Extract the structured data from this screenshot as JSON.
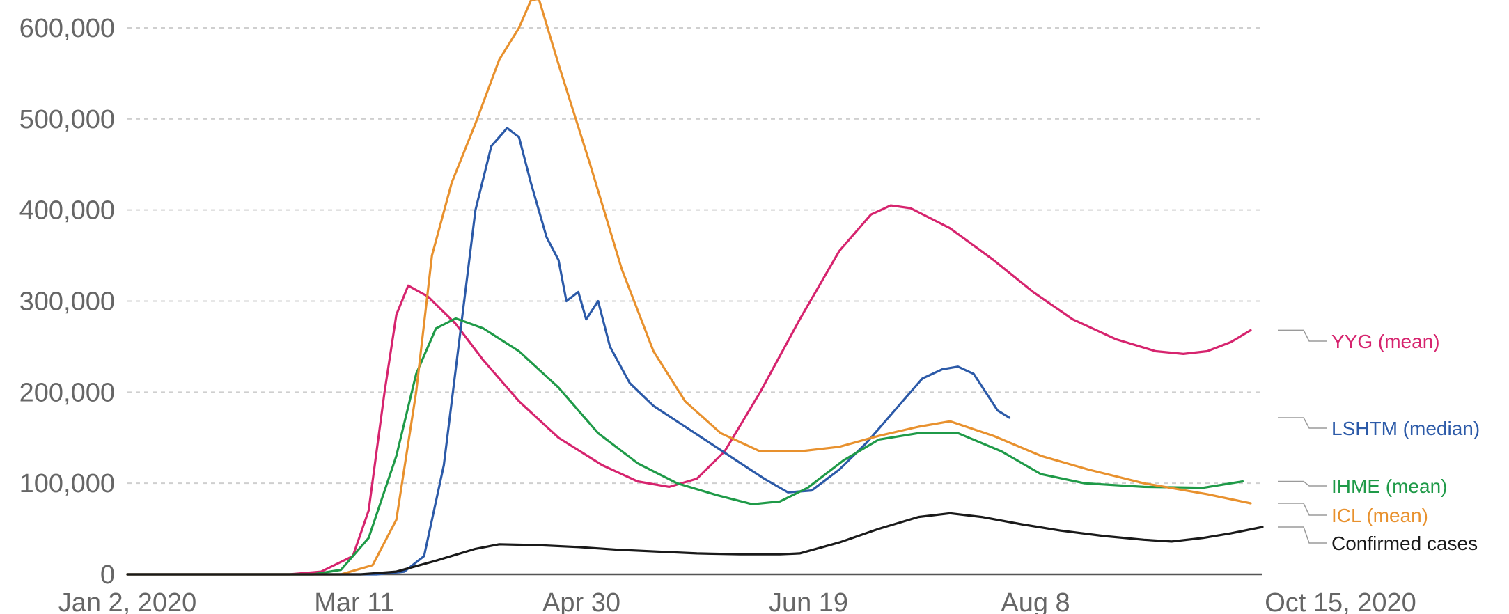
{
  "chart_data": {
    "type": "line",
    "title": "",
    "xlabel": "",
    "ylabel": "",
    "x_ticks": [
      "Jan 2, 2020",
      "Mar 11",
      "Apr 30",
      "Jun 19",
      "Aug 8",
      "Oct 15, 2020"
    ],
    "xlim": [
      "2020-01-02",
      "2020-10-15"
    ],
    "ylim": [
      0,
      600000
    ],
    "y_ticks": [
      {
        "value": 0,
        "label": "0"
      },
      {
        "value": 100000,
        "label": "100,000"
      },
      {
        "value": 200000,
        "label": "200,000"
      },
      {
        "value": 300000,
        "label": "300,000"
      },
      {
        "value": 400000,
        "label": "400,000"
      },
      {
        "value": 500000,
        "label": "500,000"
      },
      {
        "value": 600000,
        "label": "600,000"
      }
    ],
    "grid": "horizontal dashed",
    "legend_placement": "right",
    "series": [
      {
        "name": "YYG (mean)",
        "color": "#d6246e",
        "points": [
          [
            "2020-01-02",
            0
          ],
          [
            "2020-02-12",
            0
          ],
          [
            "2020-02-20",
            3000
          ],
          [
            "2020-02-28",
            20000
          ],
          [
            "2020-03-03",
            70000
          ],
          [
            "2020-03-07",
            200000
          ],
          [
            "2020-03-10",
            285000
          ],
          [
            "2020-03-13",
            317000
          ],
          [
            "2020-03-18",
            305000
          ],
          [
            "2020-03-25",
            275000
          ],
          [
            "2020-04-01",
            235000
          ],
          [
            "2020-04-10",
            190000
          ],
          [
            "2020-04-20",
            150000
          ],
          [
            "2020-05-01",
            120000
          ],
          [
            "2020-05-10",
            102000
          ],
          [
            "2020-05-18",
            96000
          ],
          [
            "2020-05-25",
            105000
          ],
          [
            "2020-06-01",
            135000
          ],
          [
            "2020-06-10",
            200000
          ],
          [
            "2020-06-20",
            280000
          ],
          [
            "2020-06-30",
            355000
          ],
          [
            "2020-07-08",
            395000
          ],
          [
            "2020-07-13",
            405000
          ],
          [
            "2020-07-18",
            402000
          ],
          [
            "2020-07-28",
            380000
          ],
          [
            "2020-08-08",
            345000
          ],
          [
            "2020-08-18",
            310000
          ],
          [
            "2020-08-28",
            280000
          ],
          [
            "2020-09-08",
            258000
          ],
          [
            "2020-09-18",
            245000
          ],
          [
            "2020-09-25",
            242000
          ],
          [
            "2020-10-01",
            245000
          ],
          [
            "2020-10-07",
            255000
          ],
          [
            "2020-10-12",
            268000
          ]
        ]
      },
      {
        "name": "LSHTM (median)",
        "color": "#2c5aa8",
        "points": [
          [
            "2020-01-02",
            0
          ],
          [
            "2020-03-05",
            0
          ],
          [
            "2020-03-12",
            3000
          ],
          [
            "2020-03-17",
            20000
          ],
          [
            "2020-03-22",
            120000
          ],
          [
            "2020-03-26",
            260000
          ],
          [
            "2020-03-30",
            400000
          ],
          [
            "2020-04-03",
            470000
          ],
          [
            "2020-04-07",
            490000
          ],
          [
            "2020-04-10",
            480000
          ],
          [
            "2020-04-13",
            430000
          ],
          [
            "2020-04-17",
            370000
          ],
          [
            "2020-04-20",
            345000
          ],
          [
            "2020-04-22",
            300000
          ],
          [
            "2020-04-25",
            310000
          ],
          [
            "2020-04-27",
            280000
          ],
          [
            "2020-04-30",
            300000
          ],
          [
            "2020-05-03",
            250000
          ],
          [
            "2020-05-08",
            210000
          ],
          [
            "2020-05-14",
            185000
          ],
          [
            "2020-05-21",
            165000
          ],
          [
            "2020-05-28",
            145000
          ],
          [
            "2020-06-04",
            125000
          ],
          [
            "2020-06-11",
            105000
          ],
          [
            "2020-06-17",
            90000
          ],
          [
            "2020-06-23",
            92000
          ],
          [
            "2020-06-30",
            115000
          ],
          [
            "2020-07-07",
            145000
          ],
          [
            "2020-07-14",
            180000
          ],
          [
            "2020-07-21",
            215000
          ],
          [
            "2020-07-26",
            225000
          ],
          [
            "2020-07-30",
            228000
          ],
          [
            "2020-08-03",
            220000
          ],
          [
            "2020-08-06",
            200000
          ],
          [
            "2020-08-09",
            180000
          ],
          [
            "2020-08-12",
            172000
          ]
        ]
      },
      {
        "name": "IHME (mean)",
        "color": "#1f9a48",
        "points": [
          [
            "2020-01-02",
            0
          ],
          [
            "2020-02-18",
            0
          ],
          [
            "2020-02-25",
            5000
          ],
          [
            "2020-03-03",
            40000
          ],
          [
            "2020-03-10",
            130000
          ],
          [
            "2020-03-15",
            220000
          ],
          [
            "2020-03-20",
            270000
          ],
          [
            "2020-03-25",
            281000
          ],
          [
            "2020-04-01",
            270000
          ],
          [
            "2020-04-10",
            245000
          ],
          [
            "2020-04-20",
            205000
          ],
          [
            "2020-04-30",
            155000
          ],
          [
            "2020-05-10",
            122000
          ],
          [
            "2020-05-20",
            100000
          ],
          [
            "2020-05-30",
            87000
          ],
          [
            "2020-06-08",
            77000
          ],
          [
            "2020-06-15",
            80000
          ],
          [
            "2020-06-22",
            95000
          ],
          [
            "2020-07-01",
            125000
          ],
          [
            "2020-07-10",
            148000
          ],
          [
            "2020-07-20",
            155000
          ],
          [
            "2020-07-30",
            155000
          ],
          [
            "2020-08-10",
            135000
          ],
          [
            "2020-08-20",
            110000
          ],
          [
            "2020-08-31",
            100000
          ],
          [
            "2020-09-15",
            96000
          ],
          [
            "2020-09-30",
            95000
          ],
          [
            "2020-10-10",
            102000
          ]
        ]
      },
      {
        "name": "ICL (mean)",
        "color": "#e8912e",
        "points": [
          [
            "2020-01-02",
            0
          ],
          [
            "2020-02-25",
            0
          ],
          [
            "2020-03-04",
            10000
          ],
          [
            "2020-03-10",
            60000
          ],
          [
            "2020-03-15",
            200000
          ],
          [
            "2020-03-19",
            350000
          ],
          [
            "2020-03-24",
            430000
          ],
          [
            "2020-03-30",
            495000
          ],
          [
            "2020-04-05",
            565000
          ],
          [
            "2020-04-10",
            600000
          ],
          [
            "2020-04-13",
            630000
          ],
          [
            "2020-04-15",
            632000
          ],
          [
            "2020-04-20",
            560000
          ],
          [
            "2020-04-28",
            450000
          ],
          [
            "2020-05-06",
            335000
          ],
          [
            "2020-05-14",
            245000
          ],
          [
            "2020-05-22",
            190000
          ],
          [
            "2020-05-31",
            155000
          ],
          [
            "2020-06-10",
            135000
          ],
          [
            "2020-06-20",
            135000
          ],
          [
            "2020-06-30",
            140000
          ],
          [
            "2020-07-10",
            152000
          ],
          [
            "2020-07-20",
            162000
          ],
          [
            "2020-07-28",
            168000
          ],
          [
            "2020-08-08",
            152000
          ],
          [
            "2020-08-20",
            130000
          ],
          [
            "2020-09-01",
            115000
          ],
          [
            "2020-09-15",
            100000
          ],
          [
            "2020-10-01",
            88000
          ],
          [
            "2020-10-12",
            78000
          ]
        ]
      },
      {
        "name": "Confirmed cases",
        "color": "#1a1a1a",
        "points": [
          [
            "2020-01-02",
            0
          ],
          [
            "2020-03-01",
            0
          ],
          [
            "2020-03-10",
            3000
          ],
          [
            "2020-03-20",
            15000
          ],
          [
            "2020-03-30",
            28000
          ],
          [
            "2020-04-05",
            33000
          ],
          [
            "2020-04-15",
            32000
          ],
          [
            "2020-04-25",
            30000
          ],
          [
            "2020-05-05",
            27000
          ],
          [
            "2020-05-15",
            25000
          ],
          [
            "2020-05-25",
            23000
          ],
          [
            "2020-06-05",
            22000
          ],
          [
            "2020-06-15",
            22000
          ],
          [
            "2020-06-20",
            23000
          ],
          [
            "2020-06-30",
            35000
          ],
          [
            "2020-07-10",
            50000
          ],
          [
            "2020-07-20",
            63000
          ],
          [
            "2020-07-28",
            67000
          ],
          [
            "2020-08-05",
            63000
          ],
          [
            "2020-08-15",
            55000
          ],
          [
            "2020-08-25",
            48000
          ],
          [
            "2020-09-05",
            42000
          ],
          [
            "2020-09-15",
            38000
          ],
          [
            "2020-09-22",
            36000
          ],
          [
            "2020-09-30",
            40000
          ],
          [
            "2020-10-07",
            45000
          ],
          [
            "2020-10-15",
            52000
          ]
        ]
      }
    ]
  }
}
